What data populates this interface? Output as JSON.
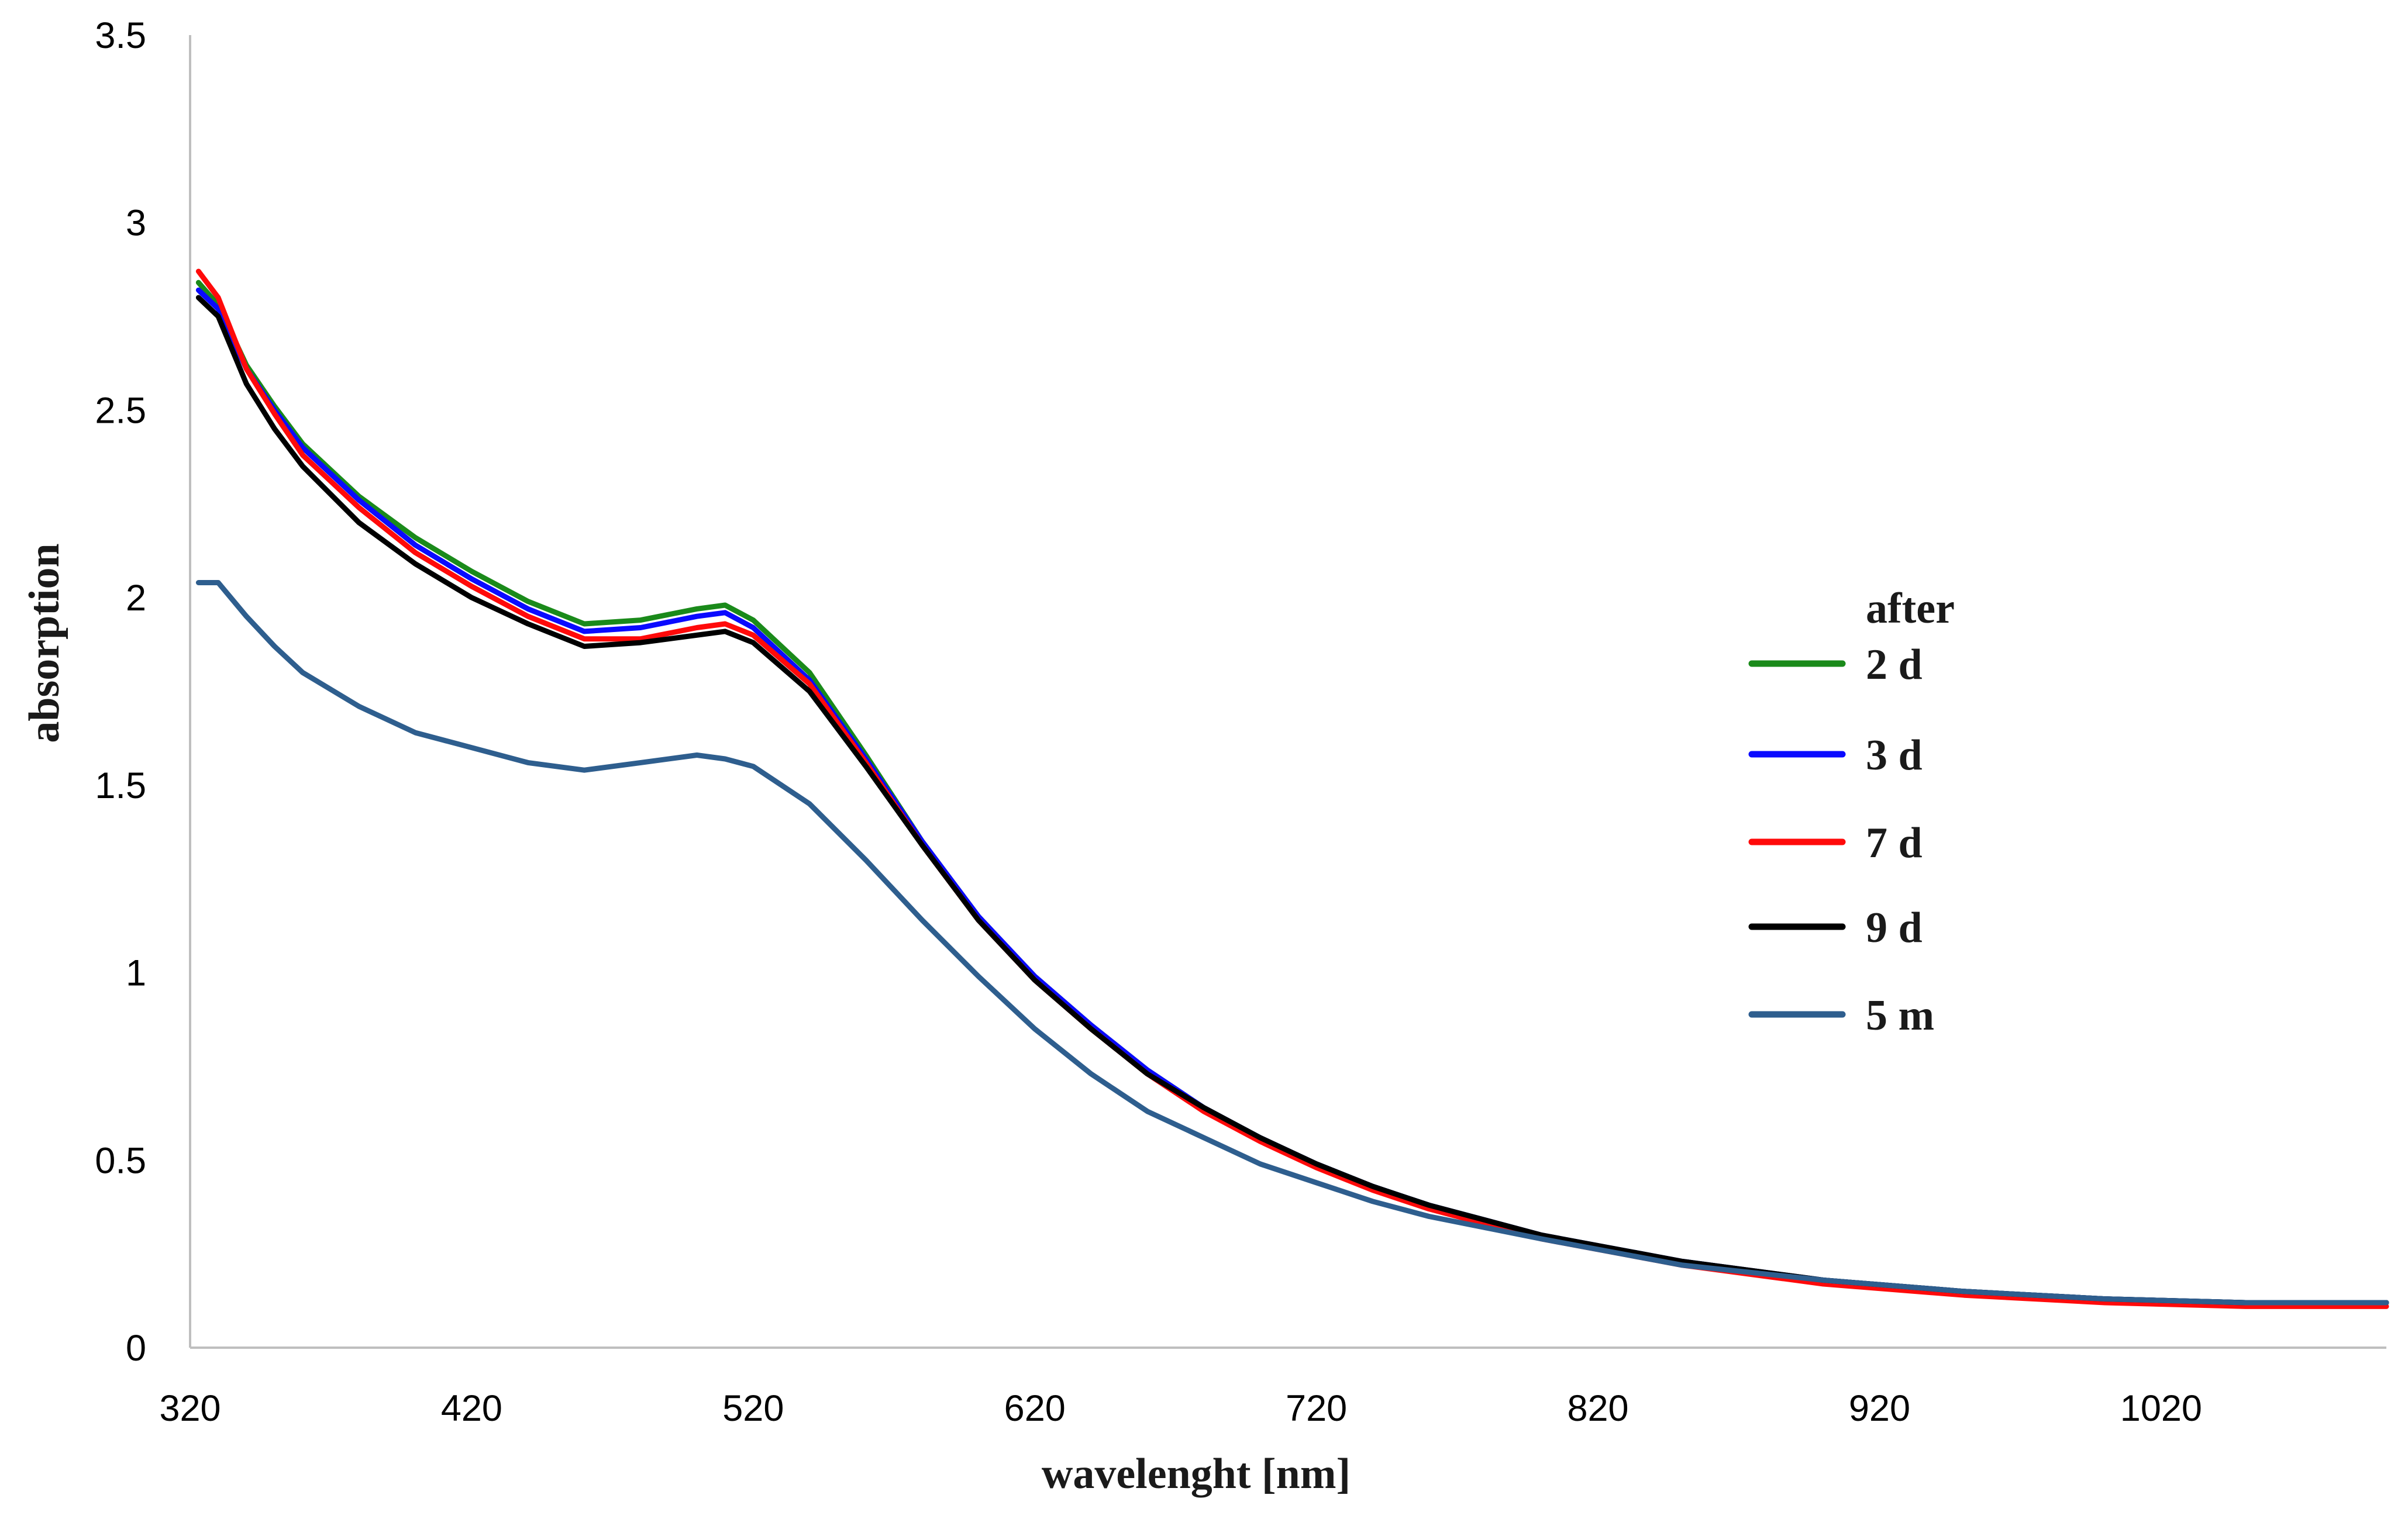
{
  "chart_data": {
    "type": "line",
    "title": "",
    "xlabel": "wavelenght [nm]",
    "ylabel": "absorption",
    "xlim": [
      320,
      1100
    ],
    "ylim": [
      0,
      3.5
    ],
    "x_ticks": [
      "320",
      "420",
      "520",
      "620",
      "720",
      "820",
      "920",
      "1020"
    ],
    "y_ticks": [
      "0",
      "0.5",
      "1",
      "1.5",
      "2",
      "2.5",
      "3",
      "3.5"
    ],
    "grid": false,
    "legend_title": "after",
    "legend_position": "right",
    "x": [
      323,
      330,
      340,
      350,
      360,
      380,
      400,
      420,
      440,
      460,
      480,
      500,
      510,
      520,
      540,
      560,
      580,
      600,
      620,
      640,
      660,
      680,
      700,
      720,
      740,
      760,
      780,
      800,
      850,
      900,
      950,
      1000,
      1050,
      1100
    ],
    "series": [
      {
        "name": "2 d",
        "color": "#1a8a1a",
        "values": [
          2.84,
          2.78,
          2.62,
          2.51,
          2.41,
          2.27,
          2.16,
          2.07,
          1.99,
          1.93,
          1.94,
          1.97,
          1.98,
          1.94,
          1.8,
          1.58,
          1.35,
          1.15,
          0.99,
          0.86,
          0.74,
          0.64,
          0.56,
          0.49,
          0.43,
          0.38,
          0.34,
          0.3,
          0.23,
          0.18,
          0.15,
          0.13,
          0.12,
          0.12
        ]
      },
      {
        "name": "3 d",
        "color": "#0a0aff",
        "values": [
          2.82,
          2.77,
          2.61,
          2.5,
          2.4,
          2.26,
          2.14,
          2.05,
          1.97,
          1.91,
          1.92,
          1.95,
          1.96,
          1.92,
          1.78,
          1.57,
          1.35,
          1.15,
          0.99,
          0.86,
          0.74,
          0.64,
          0.56,
          0.49,
          0.43,
          0.38,
          0.34,
          0.3,
          0.23,
          0.18,
          0.15,
          0.13,
          0.12,
          0.12
        ]
      },
      {
        "name": "7 d",
        "color": "#ff0a0a",
        "values": [
          2.87,
          2.8,
          2.61,
          2.49,
          2.38,
          2.24,
          2.12,
          2.03,
          1.95,
          1.89,
          1.89,
          1.92,
          1.93,
          1.9,
          1.77,
          1.56,
          1.34,
          1.14,
          0.98,
          0.85,
          0.73,
          0.63,
          0.55,
          0.48,
          0.42,
          0.37,
          0.33,
          0.29,
          0.22,
          0.17,
          0.14,
          0.12,
          0.11,
          0.11
        ]
      },
      {
        "name": "9 d",
        "color": "#000000",
        "values": [
          2.8,
          2.75,
          2.57,
          2.45,
          2.35,
          2.2,
          2.09,
          2.0,
          1.93,
          1.87,
          1.88,
          1.9,
          1.91,
          1.88,
          1.75,
          1.55,
          1.34,
          1.14,
          0.98,
          0.85,
          0.73,
          0.64,
          0.56,
          0.49,
          0.43,
          0.38,
          0.34,
          0.3,
          0.23,
          0.18,
          0.15,
          0.13,
          0.12,
          0.12
        ]
      },
      {
        "name": "5 m",
        "color": "#2e5e8e",
        "values": [
          2.04,
          2.04,
          1.95,
          1.87,
          1.8,
          1.71,
          1.64,
          1.6,
          1.56,
          1.54,
          1.56,
          1.58,
          1.57,
          1.55,
          1.45,
          1.3,
          1.14,
          0.99,
          0.85,
          0.73,
          0.63,
          0.56,
          0.49,
          0.44,
          0.39,
          0.35,
          0.32,
          0.29,
          0.22,
          0.18,
          0.15,
          0.13,
          0.12,
          0.12
        ]
      }
    ]
  }
}
